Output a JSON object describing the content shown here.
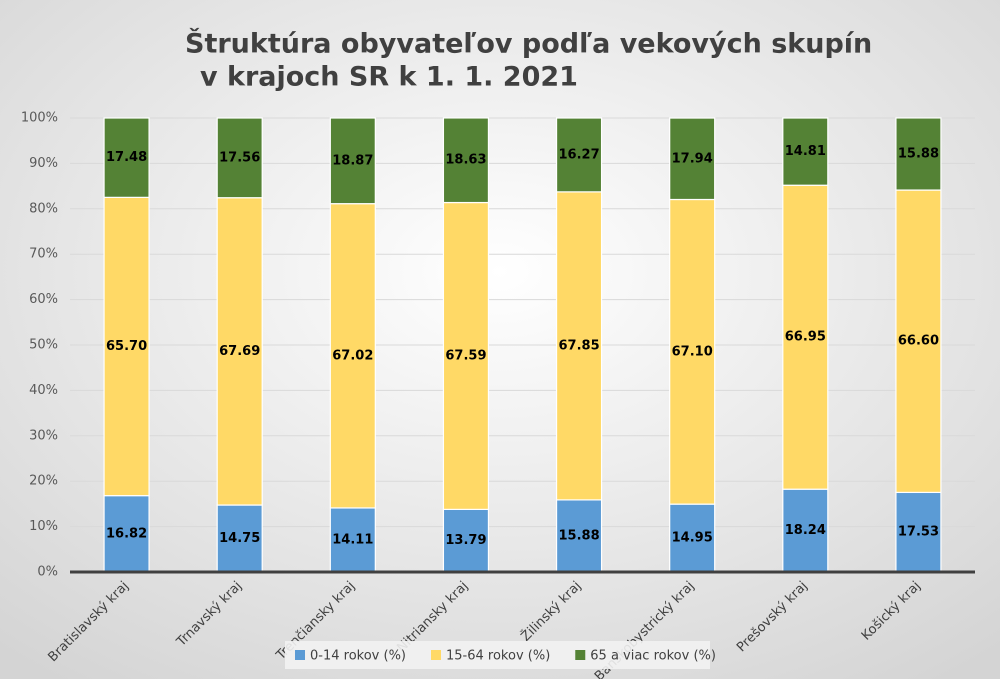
{
  "chart_data": {
    "type": "stacked_bar",
    "title": "Štruktúra obyvateľov podľa vekových skupín",
    "subtitle": "v krajoch SR k 1. 1. 2021",
    "categories": [
      "Bratislavský kraj",
      "Trnavský kraj",
      "Trenčiansky kraj",
      "Nitriansky kraj",
      "Žilinský kraj",
      "Banskobystrický kraj",
      "Prešovský kraj",
      "Košický kraj"
    ],
    "series": [
      {
        "name": "0-14 rokov (%)",
        "color": "#5b9bd5",
        "values": [
          16.82,
          14.75,
          14.11,
          13.79,
          15.88,
          14.95,
          18.24,
          17.53
        ],
        "value_labels": [
          "16.82",
          "14.75",
          "14.11",
          "13.79",
          "15.88",
          "14.95",
          "18.24",
          "17.53"
        ]
      },
      {
        "name": "15-64 rokov (%)",
        "color": "#ffd966",
        "values": [
          65.7,
          67.69,
          67.02,
          67.59,
          67.85,
          67.1,
          66.95,
          66.6
        ],
        "value_labels": [
          "65.70",
          "67.69",
          "67.02",
          "67.59",
          "67.85",
          "67.10",
          "66.95",
          "66.60"
        ]
      },
      {
        "name": "65 a viac rokov (%)",
        "color": "#548235",
        "values": [
          17.48,
          17.56,
          18.87,
          18.63,
          16.27,
          17.94,
          14.81,
          15.88
        ],
        "value_labels": [
          "17.48",
          "17.56",
          "18.87",
          "18.63",
          "16.27",
          "17.94",
          "14.81",
          "15.88"
        ]
      }
    ],
    "ylim": [
      0,
      100
    ],
    "yticks": [
      {
        "value": 0,
        "label": "0%"
      },
      {
        "value": 10,
        "label": "10%"
      },
      {
        "value": 20,
        "label": "20%"
      },
      {
        "value": 30,
        "label": "30%"
      },
      {
        "value": 40,
        "label": "40%"
      },
      {
        "value": 50,
        "label": "50%"
      },
      {
        "value": 60,
        "label": "60%"
      },
      {
        "value": 70,
        "label": "70%"
      },
      {
        "value": 80,
        "label": "80%"
      },
      {
        "value": 90,
        "label": "90%"
      },
      {
        "value": 100,
        "label": "100%"
      }
    ],
    "grid": true,
    "legend": "bottom"
  }
}
